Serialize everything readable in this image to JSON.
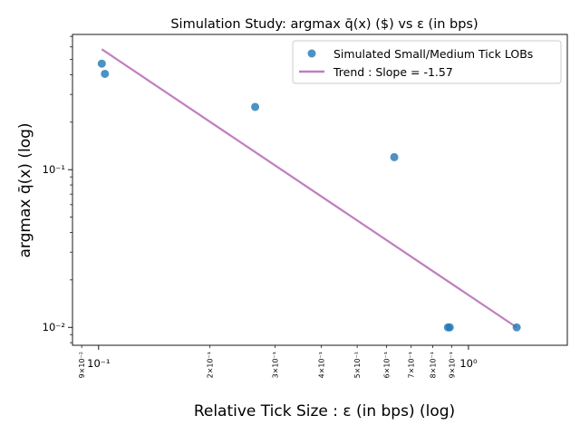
{
  "chart_data": {
    "type": "scatter",
    "title": "Simulation Study: argmax q̄(x) ($) vs ε (in bps)",
    "xlabel": "Relative Tick Size : ε (in bps) (log)",
    "ylabel": "argmax q̄(x) (log)",
    "xscale": "log",
    "yscale": "log",
    "xlim": [
      0.085,
      1.85
    ],
    "ylim": [
      0.0077,
      0.72
    ],
    "x_major_ticks": [
      {
        "value": 0.1,
        "label": "10⁻¹"
      },
      {
        "value": 1,
        "label": "10⁰"
      }
    ],
    "x_minor_ticks": [
      {
        "value": 0.09,
        "label": "9×10⁻²"
      },
      {
        "value": 0.2,
        "label": "2×10⁻¹"
      },
      {
        "value": 0.3,
        "label": "3×10⁻¹"
      },
      {
        "value": 0.4,
        "label": "4×10⁻¹"
      },
      {
        "value": 0.5,
        "label": "5×10⁻¹"
      },
      {
        "value": 0.6,
        "label": "6×10⁻¹"
      },
      {
        "value": 0.7,
        "label": "7×10⁻¹"
      },
      {
        "value": 0.8,
        "label": "8×10⁻¹"
      },
      {
        "value": 0.9,
        "label": "9×10⁻¹"
      }
    ],
    "y_major_ticks": [
      {
        "value": 0.01,
        "label": "10⁻²"
      },
      {
        "value": 0.1,
        "label": "10⁻¹"
      }
    ],
    "series": [
      {
        "name": "Simulated Small/Medium Tick LOBs",
        "kind": "scatter",
        "color": "#1f77b4",
        "points": [
          {
            "x": 0.102,
            "y": 0.47
          },
          {
            "x": 0.104,
            "y": 0.405
          },
          {
            "x": 0.265,
            "y": 0.25
          },
          {
            "x": 0.63,
            "y": 0.12
          },
          {
            "x": 0.88,
            "y": 0.01
          },
          {
            "x": 0.89,
            "y": 0.01
          },
          {
            "x": 1.35,
            "y": 0.01
          }
        ]
      },
      {
        "name": "Trend : Slope = -1.57",
        "kind": "line",
        "color": "#bf7fbf",
        "points": [
          {
            "x": 0.102,
            "y": 0.58
          },
          {
            "x": 1.35,
            "y": 0.01
          }
        ]
      }
    ],
    "legend_position": "top-right",
    "grid": false
  }
}
